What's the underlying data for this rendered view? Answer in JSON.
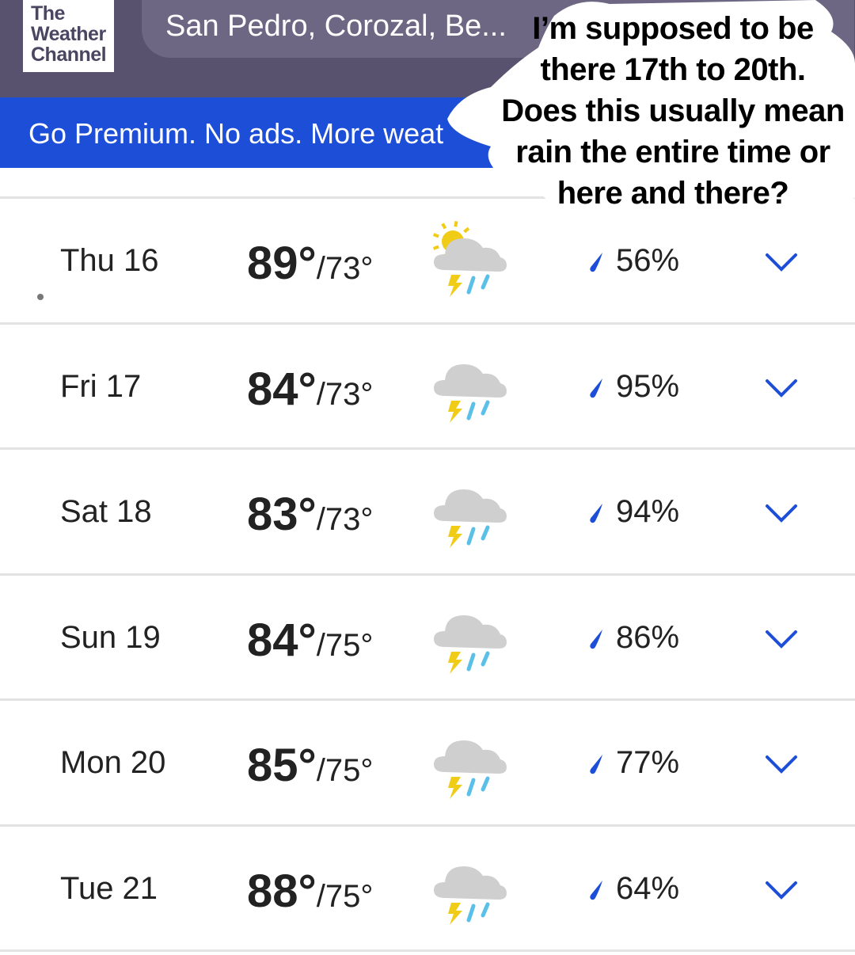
{
  "header": {
    "logo_lines": [
      "The",
      "Weather",
      "Channel"
    ],
    "search_value": "San Pedro, Corozal, Be..."
  },
  "promo": {
    "text": "Go Premium. No ads. More weat"
  },
  "caption": {
    "lines": [
      "I’m supposed to be",
      "there 17th to 20th.",
      "Does this usually mean",
      "rain the entire time or",
      "here and there?"
    ]
  },
  "days": [
    {
      "day": "Thu 16",
      "high": "89°",
      "low": "/73°",
      "precip": "56%",
      "icon": "partly-sunny-thunderstorm-icon"
    },
    {
      "day": "Fri 17",
      "high": "84°",
      "low": "/73°",
      "precip": "95%",
      "icon": "thunderstorm-icon"
    },
    {
      "day": "Sat 18",
      "high": "83°",
      "low": "/73°",
      "precip": "94%",
      "icon": "thunderstorm-icon"
    },
    {
      "day": "Sun 19",
      "high": "84°",
      "low": "/75°",
      "precip": "86%",
      "icon": "thunderstorm-icon"
    },
    {
      "day": "Mon 20",
      "high": "85°",
      "low": "/75°",
      "precip": "77%",
      "icon": "thunderstorm-icon"
    },
    {
      "day": "Tue 21",
      "high": "88°",
      "low": "/75°",
      "precip": "64%",
      "icon": "thunderstorm-icon"
    }
  ],
  "colors": {
    "header": "#58526e",
    "promo": "#1d4ed8",
    "accent": "#1d4ed8"
  }
}
